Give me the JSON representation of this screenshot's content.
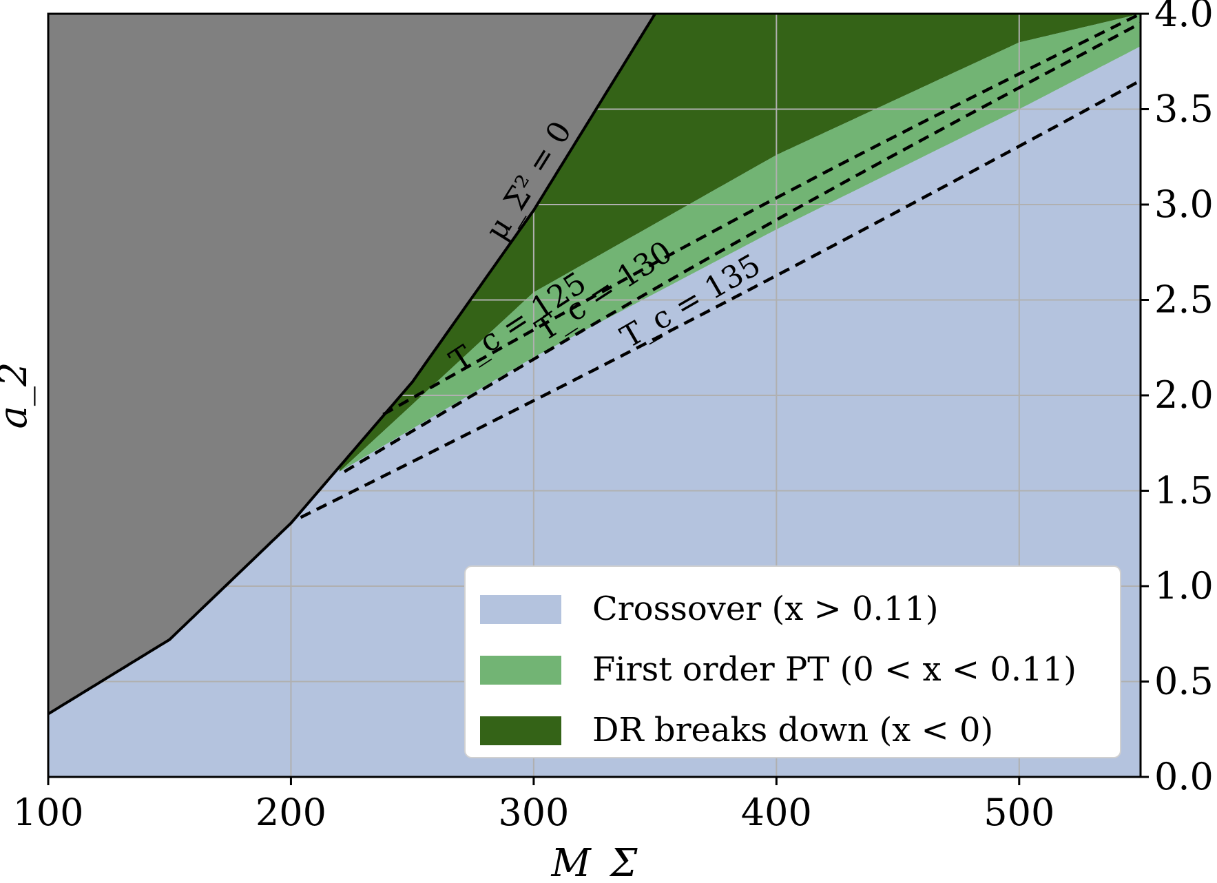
{
  "chart_data": {
    "type": "area",
    "xlabel": "M_Σ",
    "ylabel": "a_2",
    "xlim": [
      100,
      550
    ],
    "ylim": [
      0.0,
      4.0
    ],
    "xticks": [
      "100",
      "200",
      "300",
      "400",
      "500"
    ],
    "yticks": [
      "0.0",
      "0.5",
      "1.0",
      "1.5",
      "2.0",
      "2.5",
      "3.0",
      "3.5",
      "4.0"
    ],
    "y_axis_side": "right",
    "grid": true,
    "legend_position": "lower-right",
    "colors": {
      "crossover": "#b4c3de",
      "first_order": "#72b474",
      "dr_breaks_down": "#346317",
      "excluded": "#808080",
      "grid": "#b0b0b0"
    },
    "series": [
      {
        "name": "Crossover (x > 0.11)",
        "legend_text": "Crossover (x > 0.11)",
        "x": [
          100,
          220,
          300,
          400,
          500,
          550
        ],
        "y": [
          0.0,
          0.0,
          0.0,
          0.0,
          0.0,
          0.0
        ]
      },
      {
        "name": "First order PT (0 < x < 0.11)",
        "legend_text": "First order PT (0 < x < 0.11)",
        "lower": {
          "x": [
            220,
            300,
            400,
            500,
            550
          ],
          "y": [
            1.6,
            2.2,
            2.87,
            3.5,
            3.83
          ]
        },
        "upper": {
          "x": [
            220,
            300,
            400,
            500,
            550
          ],
          "y": [
            1.6,
            2.54,
            3.26,
            3.85,
            4.0
          ]
        }
      },
      {
        "name": "DR breaks down (x < 0)",
        "legend_text": "DR breaks down (x < 0)",
        "lower": {
          "x": [
            220,
            300,
            400,
            500,
            540
          ],
          "y": [
            1.6,
            2.54,
            3.26,
            3.85,
            4.0
          ]
        },
        "upper_boundary": "mu_Sigma^2 = 0"
      }
    ],
    "boundary_mu_sq_zero": {
      "label": "μ_Σ² = 0",
      "x": [
        100,
        150,
        200,
        250,
        300,
        350
      ],
      "y": [
        0.33,
        0.72,
        1.33,
        2.07,
        2.97,
        4.0
      ]
    },
    "tc_lines": [
      {
        "label": "T_c = 125",
        "x": [
          238,
          550
        ],
        "y": [
          1.9,
          4.0
        ]
      },
      {
        "label": "T_c = 130",
        "x": [
          222,
          550
        ],
        "y": [
          1.6,
          3.95
        ]
      },
      {
        "label": "T_c = 135",
        "x": [
          204,
          550
        ],
        "y": [
          1.36,
          3.65
        ]
      }
    ]
  }
}
